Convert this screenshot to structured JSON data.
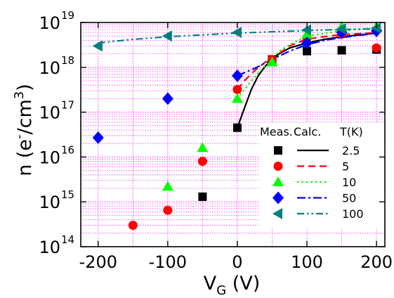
{
  "chart_data": {
    "type": "scatter",
    "x_axis": {
      "label_base": "V",
      "label_sub": "G",
      "label_unit": " (V)",
      "range": [
        -225,
        212
      ],
      "ticks": [
        {
          "value": -200,
          "label": "-200"
        },
        {
          "value": -100,
          "label": "-100"
        },
        {
          "value": 0,
          "label": "0"
        },
        {
          "value": 100,
          "label": "100"
        },
        {
          "value": 200,
          "label": "200"
        }
      ]
    },
    "y_axis": {
      "label_pre": "n (e",
      "label_sup_minus": "-",
      "label_mid": "/cm",
      "label_sup": "3",
      "label_post": ")",
      "scale": "log",
      "range": [
        100000000000000.0,
        1e+19
      ],
      "ticks": [
        {
          "exp": 14,
          "base": "10",
          "sup": "14"
        },
        {
          "exp": 15,
          "base": "10",
          "sup": "15"
        },
        {
          "exp": 16,
          "base": "10",
          "sup": "16"
        },
        {
          "exp": 17,
          "base": "10",
          "sup": "17"
        },
        {
          "exp": 18,
          "base": "10",
          "sup": "18"
        },
        {
          "exp": 19,
          "base": "10",
          "sup": "19"
        }
      ]
    },
    "grid": "dotted-magenta",
    "legend": {
      "placement": "lower-right",
      "headers": [
        "Meas.",
        "Calc.",
        "T(K)"
      ],
      "entries": [
        {
          "label": "2.5",
          "series": "2.5"
        },
        {
          "label": "5",
          "series": "5"
        },
        {
          "label": "10",
          "series": "10"
        },
        {
          "label": "50",
          "series": "50"
        },
        {
          "label": "100",
          "series": "100"
        }
      ]
    },
    "measured": [
      {
        "series": "2.5",
        "marker": "square",
        "color": "#000000",
        "points": [
          [
            -50,
            1300000000000000.0
          ],
          [
            0,
            4.5e+16
          ],
          [
            50,
            1.5e+18
          ],
          [
            100,
            2.3e+18
          ],
          [
            150,
            2.4e+18
          ],
          [
            200,
            2.5e+18
          ]
        ]
      },
      {
        "series": "5",
        "marker": "circle",
        "color": "#ff0000",
        "points": [
          [
            -150,
            300000000000000.0
          ],
          [
            -100,
            650000000000000.0
          ],
          [
            -50,
            8000000000000000.0
          ],
          [
            0,
            3.2e+17
          ],
          [
            50,
            1.5e+18
          ],
          [
            100,
            4.5e+18
          ],
          [
            150,
            5.5e+18
          ],
          [
            200,
            2.7e+18
          ]
        ]
      },
      {
        "series": "10",
        "marker": "triangle-up",
        "color": "#00ff00",
        "points": [
          [
            -100,
            2200000000000000.0
          ],
          [
            -50,
            1.6e+16
          ],
          [
            0,
            2e+17
          ],
          [
            50,
            1.3e+18
          ],
          [
            100,
            5.5e+18
          ],
          [
            150,
            8e+18
          ],
          [
            200,
            8e+18
          ]
        ]
      },
      {
        "series": "50",
        "marker": "diamond",
        "color": "#0000ff",
        "points": [
          [
            -200,
            2.7e+16
          ],
          [
            -100,
            2e+17
          ],
          [
            0,
            6.5e+17
          ],
          [
            100,
            3.5e+18
          ],
          [
            150,
            6e+18
          ],
          [
            200,
            6.5e+18
          ]
        ]
      },
      {
        "series": "100",
        "marker": "triangle-left",
        "color": "#007f7f",
        "points": [
          [
            -200,
            3e+18
          ],
          [
            -100,
            5e+18
          ],
          [
            0,
            6e+18
          ],
          [
            100,
            6.8e+18
          ],
          [
            150,
            7.2e+18
          ],
          [
            200,
            7.5e+18
          ]
        ]
      }
    ],
    "calculated": [
      {
        "series": "2.5",
        "style": "solid",
        "color": "#000000",
        "points": [
          [
            0,
            4.5e+16
          ],
          [
            10,
            1.2e+17
          ],
          [
            20,
            3.2e+17
          ],
          [
            30,
            6.5e+17
          ],
          [
            40,
            1.05e+18
          ],
          [
            50,
            1.55e+18
          ],
          [
            60,
            2e+18
          ],
          [
            75,
            2.7e+18
          ],
          [
            100,
            3.5e+18
          ],
          [
            125,
            4.2e+18
          ],
          [
            150,
            4.8e+18
          ],
          [
            175,
            5.3e+18
          ],
          [
            200,
            5.8e+18
          ]
        ]
      },
      {
        "series": "5",
        "style": "dashed",
        "color": "#ff0000",
        "points": [
          [
            0,
            3.2e+17
          ],
          [
            10,
            5e+17
          ],
          [
            25,
            8.5e+17
          ],
          [
            40,
            1.3e+18
          ],
          [
            50,
            1.6e+18
          ],
          [
            75,
            3e+18
          ],
          [
            100,
            4.3e+18
          ],
          [
            150,
            5.4e+18
          ],
          [
            200,
            5.9e+18
          ]
        ]
      },
      {
        "series": "10",
        "style": "dotted",
        "color": "#00ff00",
        "points": [
          [
            0,
            2e+17
          ],
          [
            20,
            5e+17
          ],
          [
            40,
            1.1e+18
          ],
          [
            60,
            2.3e+18
          ],
          [
            80,
            3.5e+18
          ],
          [
            100,
            5e+18
          ],
          [
            150,
            6.5e+18
          ],
          [
            200,
            7.6e+18
          ]
        ]
      },
      {
        "series": "50",
        "style": "dash-dot",
        "color": "#0000ff",
        "points": [
          [
            0,
            6.5e+17
          ],
          [
            25,
            9.5e+17
          ],
          [
            50,
            1.5e+18
          ],
          [
            75,
            2.3e+18
          ],
          [
            100,
            3.2e+18
          ],
          [
            125,
            4e+18
          ],
          [
            150,
            4.6e+18
          ],
          [
            200,
            5.8e+18
          ]
        ]
      },
      {
        "series": "100",
        "style": "dash-dot-dot",
        "color": "#007f7f",
        "points": [
          [
            -200,
            3.5e+18
          ],
          [
            -150,
            4.2e+18
          ],
          [
            -100,
            4.8e+18
          ],
          [
            -50,
            5.3e+18
          ],
          [
            0,
            5.8e+18
          ],
          [
            50,
            6.2e+18
          ],
          [
            100,
            6.6e+18
          ],
          [
            150,
            7e+18
          ],
          [
            200,
            7.2e+18
          ]
        ]
      }
    ]
  }
}
